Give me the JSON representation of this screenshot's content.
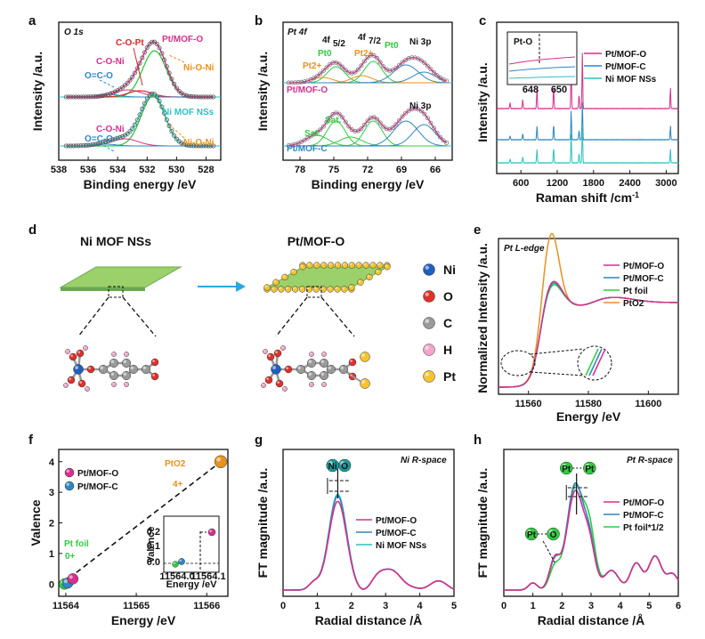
{
  "colors": {
    "pink": "#d6308c",
    "blue": "#2e86c1",
    "teal": "#2cc1c1",
    "green": "#2ecc40",
    "orange": "#e8911c",
    "red": "#d62728",
    "grey": "#777777",
    "black": "#111111",
    "mof": "#9bd06b"
  },
  "chart_data": [
    {
      "panel": "a",
      "type": "line",
      "tag": "O 1s",
      "xlabel": "Binding energy /eV",
      "ylabel": "Intensity /a.u.",
      "xlim": [
        538,
        527
      ],
      "xticks": [
        538,
        536,
        534,
        532,
        530,
        528
      ],
      "series": [
        {
          "name": "Pt/MOF-O",
          "peaks": [
            531.5,
            533.4,
            534.6,
            532.5
          ]
        },
        {
          "name": "Ni MOF NSs",
          "peaks": [
            531.6,
            533.5,
            534.8
          ]
        }
      ],
      "annotations": [
        "C-O-Pt",
        "Pt/MOF-O",
        "O=C-O",
        "C-O-Ni",
        "Ni-O-Ni",
        "Ni MOF NSs",
        "O=C-O",
        "C-O-Ni",
        "Ni-O-Ni"
      ]
    },
    {
      "panel": "b",
      "type": "line",
      "tag": "Pt 4f",
      "xlabel": "Binding energy /eV",
      "ylabel": "Intensity /a.u.",
      "xlim": [
        79.5,
        64.5
      ],
      "xticks": [
        78,
        75,
        72,
        69,
        66
      ],
      "series": [
        {
          "name": "Pt/MOF-O"
        },
        {
          "name": "Pt/MOF-C"
        }
      ],
      "annotations": [
        "4f",
        "5/2",
        "4f",
        "7/2",
        "Pt0",
        "Pt2+",
        "Pt2+",
        "Pt0",
        "Ni 3p",
        "Sat.",
        "Sat.",
        "Ni 3p"
      ]
    },
    {
      "panel": "c",
      "type": "line",
      "xlabel": "Raman shift /cm",
      "ylabel": "Intensity /a.u.",
      "xlim": [
        200,
        3200
      ],
      "xticks": [
        600,
        1200,
        1800,
        2400,
        3000
      ],
      "peaks": [
        1615,
        1430,
        1140,
        865,
        630,
        3070
      ],
      "series": [
        {
          "name": "Pt/MOF-O"
        },
        {
          "name": "Pt/MOF-C"
        },
        {
          "name": "Ni MOF NSs"
        }
      ],
      "inset": {
        "label": "Pt-O",
        "xticks": [
          648,
          650
        ]
      }
    },
    {
      "panel": "d",
      "type": "diagram",
      "titles": [
        "Ni MOF NSs",
        "Pt/MOF-O"
      ],
      "legend": [
        "Ni",
        "O",
        "C",
        "H",
        "Pt"
      ]
    },
    {
      "panel": "e",
      "type": "line",
      "tag": "Pt L-edge",
      "xlabel": "Energy /eV",
      "ylabel": "Normalized Intensity /a.u.",
      "xlim": [
        11550,
        11610
      ],
      "xticks": [
        11560,
        11580,
        11600
      ],
      "series": [
        {
          "name": "Pt/MOF-O"
        },
        {
          "name": "Pt/MOF-C"
        },
        {
          "name": "Pt foil"
        },
        {
          "name": "PtO2"
        }
      ]
    },
    {
      "panel": "f",
      "type": "scatter",
      "xlabel": "Energy /eV",
      "ylabel": "Valence",
      "xlim": [
        11563.9,
        11566.3
      ],
      "ylim": [
        -0.4,
        4.4
      ],
      "xticks": [
        11564,
        11565,
        11566
      ],
      "yticks": [
        0,
        1,
        2,
        3,
        4
      ],
      "points": [
        {
          "name": "Pt/MOF-O",
          "x": 11564.1,
          "y": 0.17
        },
        {
          "name": "Pt/MOF-C",
          "x": 11564.0,
          "y": 0.03
        },
        {
          "name": "Pt foil",
          "x": 11563.98,
          "y": 0
        },
        {
          "name": "PtO2",
          "x": 11566.2,
          "y": 4
        }
      ],
      "labels": {
        "ptfoil": "Pt foil",
        "zero": "0+",
        "pto2": "PtO2",
        "four": "4+"
      },
      "inset": {
        "xlabel": "Energy /eV",
        "ylabel": "Valence",
        "xticks": [
          "11564.0",
          "11564.1"
        ],
        "yticks": [
          "0.0",
          "0.1",
          "0.2"
        ]
      }
    },
    {
      "panel": "g",
      "type": "line",
      "tag": "Ni R-space",
      "xlabel": "Radial distance /Å",
      "ylabel": "FT magnitude /a.u.",
      "xlim": [
        0,
        5
      ],
      "xticks": [
        0,
        1,
        2,
        3,
        4,
        5
      ],
      "peak": {
        "x": 1.6,
        "label": [
          "Ni",
          "O"
        ]
      },
      "series": [
        {
          "name": "Pt/MOF-O"
        },
        {
          "name": "Pt/MOF-C"
        },
        {
          "name": "Ni MOF NSs"
        }
      ]
    },
    {
      "panel": "h",
      "type": "line",
      "tag": "Pt R-space",
      "xlabel": "Radial distance /Å",
      "ylabel": "FT magnitude /a.u.",
      "xlim": [
        0,
        6
      ],
      "xticks": [
        0,
        1,
        2,
        3,
        4,
        5,
        6
      ],
      "peaks": [
        {
          "x": 1.7,
          "label": [
            "Pt",
            "O"
          ]
        },
        {
          "x": 2.5,
          "label": [
            "Pt",
            "Pt"
          ]
        }
      ],
      "series": [
        {
          "name": "Pt/MOF-O"
        },
        {
          "name": "Pt/MOF-C"
        },
        {
          "name": "Pt foil*1/2"
        }
      ]
    }
  ]
}
